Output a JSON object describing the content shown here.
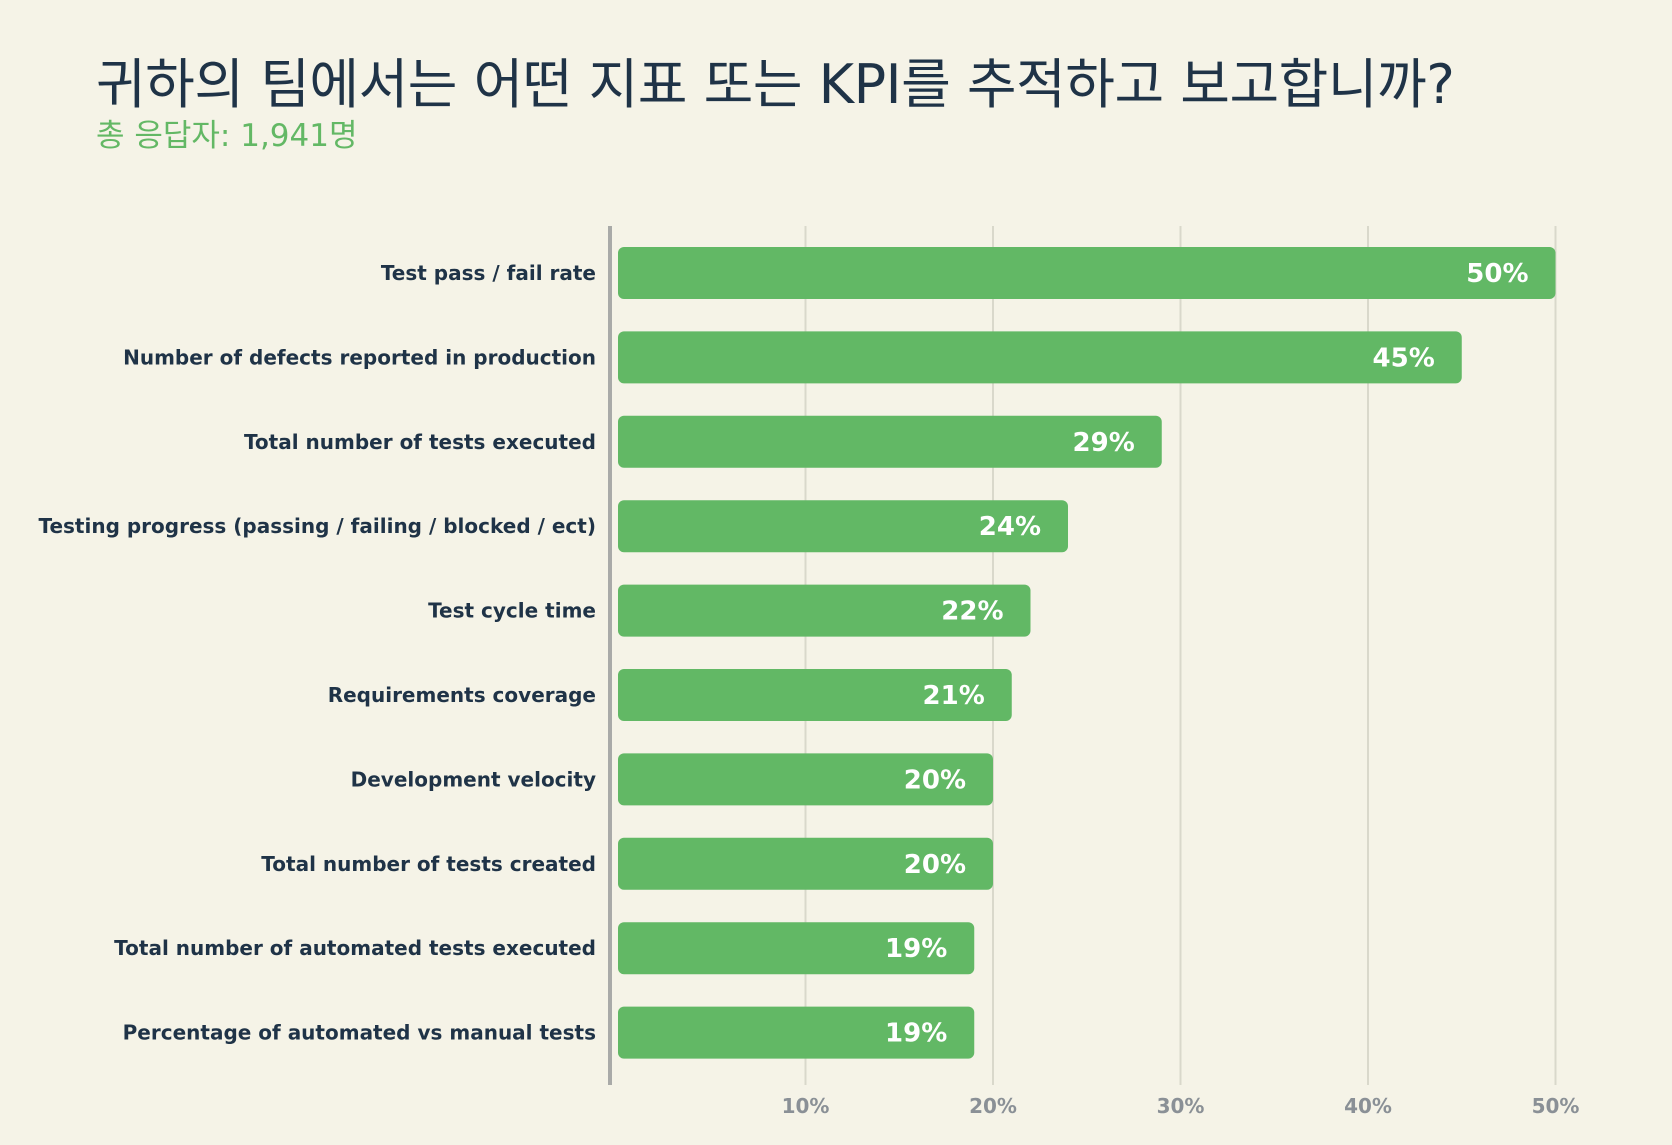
{
  "chart_data": {
    "type": "bar",
    "orientation": "horizontal",
    "title": "귀하의 팀에서는 어떤 지표 또는 KPI를 추적하고 보고합니까?",
    "subtitle": "총 응답자: 1,941명",
    "categories": [
      "Test pass / fail rate",
      "Number of defects reported in production",
      "Total number of tests executed",
      "Testing progress (passing / failing / blocked / ect)",
      "Test cycle time",
      "Requirements coverage",
      "Development velocity",
      "Total number of tests created",
      "Total number of automated tests executed",
      "Percentage of automated vs manual tests"
    ],
    "values": [
      50,
      45,
      29,
      24,
      22,
      21,
      20,
      20,
      19,
      19
    ],
    "value_labels": [
      "50%",
      "45%",
      "29%",
      "24%",
      "22%",
      "21%",
      "20%",
      "20%",
      "19%",
      "19%"
    ],
    "x_ticks": [
      10,
      20,
      30,
      40,
      50
    ],
    "x_tick_labels": [
      "10%",
      "20%",
      "30%",
      "40%",
      "50%"
    ],
    "xlim": [
      0,
      50
    ],
    "grid": true,
    "colors": {
      "bar": "#62b865",
      "grid": "#d9d8cb",
      "axis": "#a9aaa8",
      "background": "#f5f3e7"
    }
  }
}
